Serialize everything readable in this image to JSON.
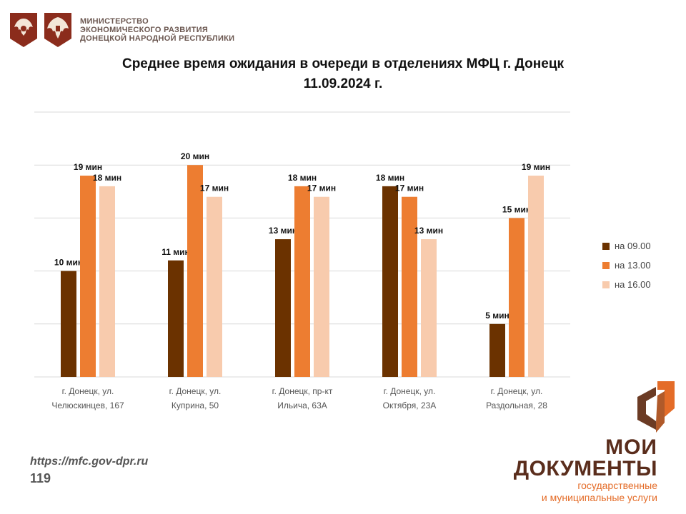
{
  "header": {
    "ministry_lines": [
      "МИНИСТЕРСТВО",
      "ЭКОНОМИЧЕСКОГО РАЗВИТИЯ",
      "ДОНЕЦКОЙ НАРОДНОЙ РЕСПУБЛИКИ"
    ],
    "emblem_icons": [
      "russia-coat-of-arms-icon",
      "dpr-coat-of-arms-icon"
    ]
  },
  "title_lines": [
    "Среднее время ожидания в очереди в отделениях МФЦ г. Донецк",
    "11.09.2024 г."
  ],
  "colors": {
    "s1": "#6b3200",
    "s2": "#ed7d31",
    "s3": "#f8cbad",
    "grid": "#d9d9d9"
  },
  "chart_data": {
    "type": "bar",
    "title": "Среднее время ожидания в очереди в отделениях МФЦ г. Донецк 11.09.2024 г.",
    "categories": [
      [
        "г. Донецк, ул.",
        "Челюскинцев, 167"
      ],
      [
        "г. Донецк, ул.",
        "Куприна, 50"
      ],
      [
        "г. Донецк, пр-кт",
        "Ильича, 63А"
      ],
      [
        "г. Донецк, ул.",
        "Октября, 23А"
      ],
      [
        "г. Донецк, ул.",
        "Раздольная, 28"
      ]
    ],
    "series": [
      {
        "name": "на 09.00",
        "values": [
          10,
          11,
          13,
          18,
          5
        ]
      },
      {
        "name": "на 13.00",
        "values": [
          19,
          20,
          18,
          17,
          15
        ]
      },
      {
        "name": "на 16.00",
        "values": [
          18,
          17,
          17,
          13,
          19
        ]
      }
    ],
    "value_suffix": " мин",
    "ylim": [
      0,
      25
    ],
    "gridlines": [
      0,
      5,
      10,
      15,
      20,
      25
    ],
    "grid": true,
    "legend_position": "right"
  },
  "footer": {
    "url": "https://mfc.gov-dpr.ru",
    "number": "119"
  },
  "logo": {
    "line1": "МОИ",
    "line2": "ДОКУМЕНТЫ",
    "sub1": "государственные",
    "sub2": "и муниципальные услуги"
  }
}
